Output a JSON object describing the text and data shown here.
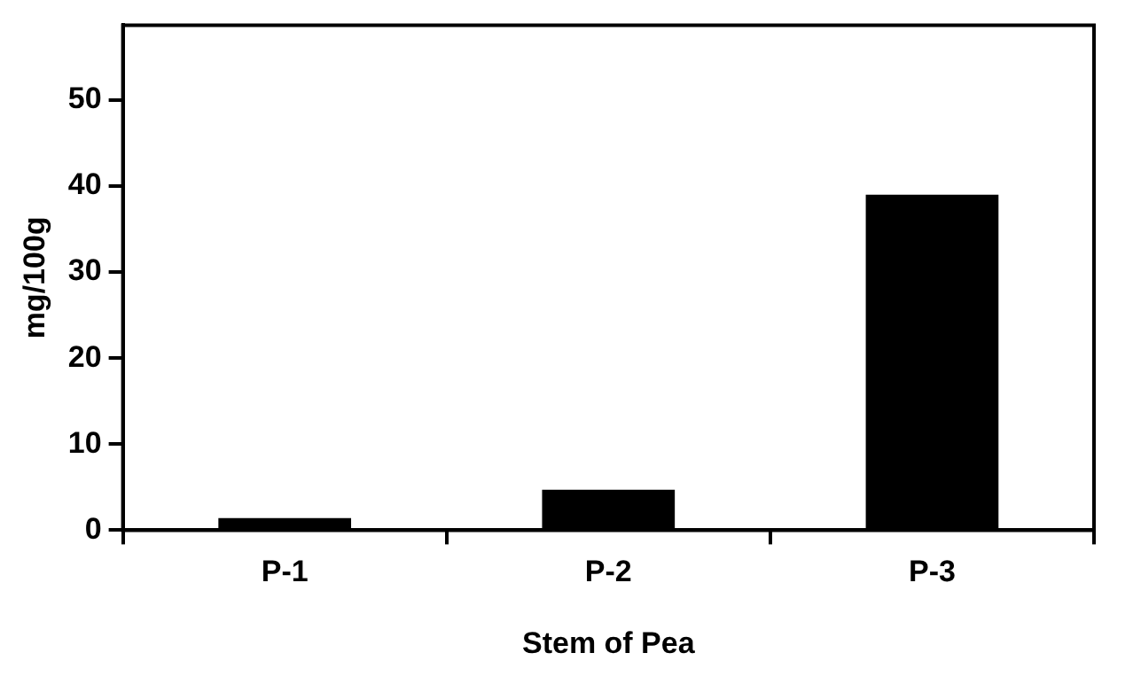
{
  "chart_data": {
    "type": "bar",
    "xlabel": "Stem of Pea",
    "ylabel": "mg/100g",
    "categories": [
      "P-1",
      "P-2",
      "P-3"
    ],
    "values": [
      1.4,
      4.7,
      39.0
    ],
    "color": "#000000",
    "ylim": [
      0,
      58.7
    ],
    "yticks": [
      0,
      10,
      20,
      30,
      40,
      50
    ],
    "grid": false,
    "legend": false
  }
}
